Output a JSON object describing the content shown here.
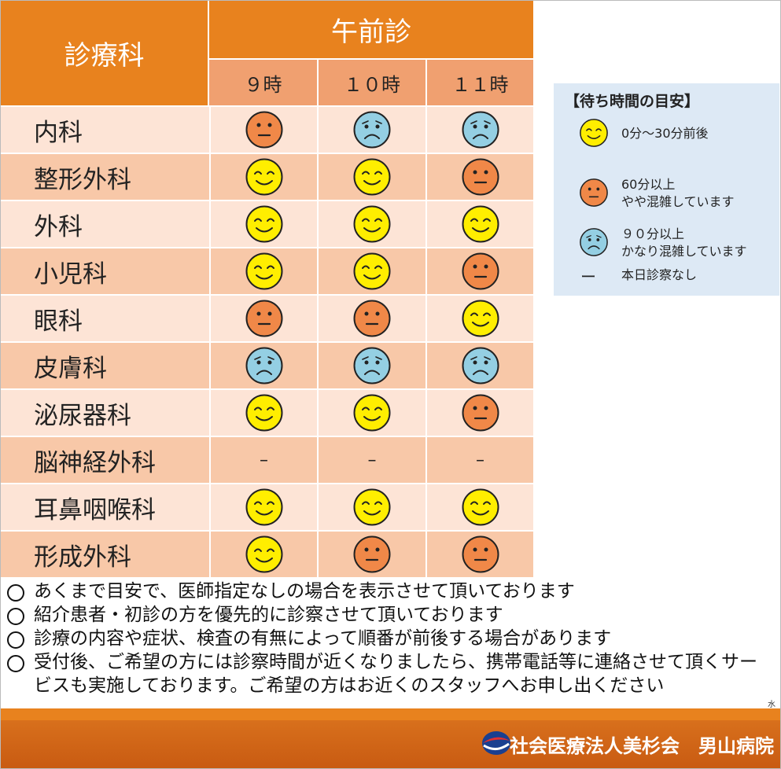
{
  "table": {
    "header": {
      "department": "診療科",
      "session": "午前診",
      "times": [
        "９時",
        "１０時",
        "１１時"
      ]
    },
    "rows": [
      {
        "name": "内科",
        "cells": [
          1,
          2,
          2
        ]
      },
      {
        "name": "整形外科",
        "cells": [
          0,
          0,
          1
        ]
      },
      {
        "name": "外科",
        "cells": [
          0,
          0,
          0
        ]
      },
      {
        "name": "小児科",
        "cells": [
          0,
          0,
          1
        ]
      },
      {
        "name": "眼科",
        "cells": [
          1,
          1,
          0
        ]
      },
      {
        "name": "皮膚科",
        "cells": [
          2,
          2,
          2
        ]
      },
      {
        "name": "泌尿器科",
        "cells": [
          0,
          0,
          1
        ]
      },
      {
        "name": "脳神経外科",
        "cells": [
          "–",
          "–",
          "–"
        ]
      },
      {
        "name": "耳鼻咽喉科",
        "cells": [
          0,
          0,
          0
        ]
      },
      {
        "name": "形成外科",
        "cells": [
          0,
          1,
          1
        ]
      }
    ]
  },
  "legend": {
    "title": "【待ち時間の目安】",
    "items": [
      {
        "lines": [
          "0分～30分前後"
        ],
        "color": "#ffee00"
      },
      {
        "lines": [
          "60分以上",
          "やや混雑しています"
        ],
        "color": "#f08848"
      },
      {
        "lines": [
          "９０分以上",
          "かなり混雑しています"
        ],
        "color": "#94cfe3"
      },
      {
        "symbol": "ー",
        "lines": [
          "本日診察なし"
        ]
      }
    ]
  },
  "notes": [
    "あくまで目安で、医師指定なしの場合を表示させて頂いております",
    "紹介患者・初診の方を優先的に診察させて頂いております",
    "診療の内容や症状、検査の有無によって順番が前後する場合があります",
    "受付後、ご希望の方には診察時間が近くなりましたら、携帯電話等に連絡させて頂くサービスも実施しております。ご希望の方はお近くのスタッフへお申し出ください"
  ],
  "footer": {
    "mark": "水",
    "organization": "社会医療法人美杉会　男山病院"
  }
}
